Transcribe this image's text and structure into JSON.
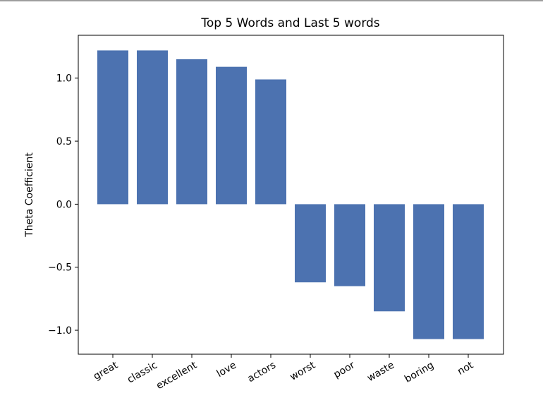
{
  "chart_data": {
    "type": "bar",
    "title": "Top 5 Words and Last 5 words",
    "xlabel": "",
    "ylabel": "Theta Coefficient",
    "categories": [
      "great",
      "classic",
      "excellent",
      "love",
      "actors",
      "worst",
      "poor",
      "waste",
      "boring",
      "not"
    ],
    "values": [
      1.22,
      1.22,
      1.15,
      1.09,
      0.99,
      -0.62,
      -0.65,
      -0.85,
      -1.07,
      -1.07
    ],
    "ylim": [
      -1.19,
      1.34
    ],
    "yticks": [
      -1.0,
      -0.5,
      0.0,
      0.5,
      1.0
    ],
    "ytick_labels": [
      "−1.0",
      "−0.5",
      "0.0",
      "0.5",
      "1.0"
    ],
    "xtick_rotation_deg": 30,
    "bar_color": "#4c72b0",
    "grid": false,
    "legend": "none"
  }
}
